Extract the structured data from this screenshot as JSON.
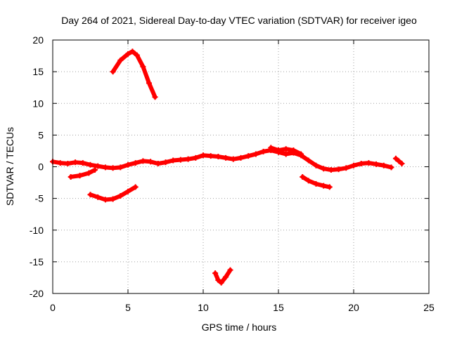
{
  "chart_data": {
    "type": "scatter",
    "title": "Day 264 of 2021, Sidereal Day-to-day VTEC variation (SDTVAR) for receiver igeo",
    "xlabel": "GPS time / hours",
    "ylabel": "SDTVAR / TECUs",
    "xlim": [
      0,
      25
    ],
    "ylim": [
      -20,
      20
    ],
    "xticks": [
      0,
      5,
      10,
      15,
      20,
      25
    ],
    "yticks": [
      -20,
      -15,
      -10,
      -5,
      0,
      5,
      10,
      15,
      20
    ],
    "grid": true,
    "marker": "+",
    "color": "#ff0000",
    "series": [
      {
        "name": "arc-1",
        "x": [
          0.0,
          0.5,
          1.0,
          1.5,
          2.0,
          2.5,
          3.0,
          3.5,
          4.0,
          4.5,
          5.0,
          5.5,
          6.0,
          6.5,
          7.0,
          7.5,
          8.0,
          8.5,
          9.0,
          9.5,
          10.0,
          10.5,
          11.0,
          11.5,
          12.0,
          12.5,
          13.0,
          13.5,
          14.0,
          14.5,
          15.0,
          15.5,
          16.0,
          16.5,
          17.0,
          17.5,
          18.0,
          18.5,
          19.0,
          19.5,
          20.0,
          20.5,
          21.0,
          21.5,
          22.0,
          22.5
        ],
        "y": [
          0.8,
          0.6,
          0.5,
          0.7,
          0.6,
          0.3,
          0.1,
          -0.1,
          -0.2,
          -0.1,
          0.3,
          0.6,
          0.9,
          0.8,
          0.5,
          0.7,
          1.0,
          1.1,
          1.2,
          1.4,
          1.8,
          1.7,
          1.6,
          1.4,
          1.2,
          1.4,
          1.7,
          2.0,
          2.4,
          2.6,
          2.3,
          2.0,
          2.2,
          1.8,
          1.0,
          0.2,
          -0.3,
          -0.5,
          -0.4,
          -0.2,
          0.2,
          0.5,
          0.6,
          0.4,
          0.2,
          -0.1
        ]
      },
      {
        "name": "arc-2",
        "x": [
          4.0,
          4.5,
          5.0,
          5.3,
          5.6,
          6.0,
          6.4,
          6.8
        ],
        "y": [
          15.0,
          16.8,
          17.8,
          18.2,
          17.6,
          15.8,
          13.2,
          11.0
        ]
      },
      {
        "name": "arc-3",
        "x": [
          10.8,
          11.0,
          11.2,
          11.5,
          11.8
        ],
        "y": [
          -16.8,
          -17.9,
          -18.3,
          -17.4,
          -16.3
        ]
      },
      {
        "name": "arc-4",
        "x": [
          2.5,
          3.0,
          3.5,
          4.0,
          4.5,
          5.0,
          5.5
        ],
        "y": [
          -4.4,
          -4.8,
          -5.2,
          -5.1,
          -4.6,
          -3.9,
          -3.2
        ]
      },
      {
        "name": "arc-5",
        "x": [
          1.2,
          1.8,
          2.4,
          2.8
        ],
        "y": [
          -1.6,
          -1.4,
          -1.0,
          -0.5
        ]
      },
      {
        "name": "arc-6",
        "x": [
          16.6,
          17.0,
          17.5,
          18.0,
          18.4
        ],
        "y": [
          -1.6,
          -2.2,
          -2.7,
          -3.0,
          -3.2
        ]
      },
      {
        "name": "arc-7",
        "x": [
          14.5,
          15.0,
          15.5,
          16.0,
          16.5
        ],
        "y": [
          3.0,
          2.6,
          2.8,
          2.6,
          2.0
        ]
      },
      {
        "name": "arc-8",
        "x": [
          22.8,
          23.0,
          23.2
        ],
        "y": [
          1.3,
          0.9,
          0.5
        ]
      }
    ]
  }
}
